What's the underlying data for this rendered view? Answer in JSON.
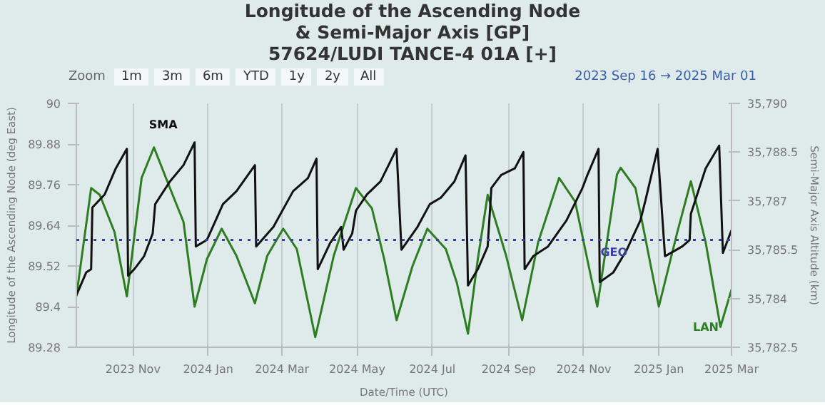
{
  "chart_data": {
    "type": "line",
    "title": "Longitude of the Ascending Node\n& Semi-Major Axis [GP]\n57624/LUDI TANCE-4 01A [+]",
    "xlabel": "Date/Time (UTC)",
    "ylabel": "Longitude of the Ascending Node (deg East)",
    "y2label": "Semi-Major Axis Altitude (km)",
    "annotations": [
      "Zoom",
      "1m",
      "3m",
      "6m",
      "YTD",
      "1y",
      "2y",
      "All",
      "2023 Sep 16 → 2025 Mar 01"
    ],
    "xlim": [
      "2023-09-16",
      "2025-03-01"
    ],
    "xticks": [
      {
        "value": "2023-11-01",
        "label": "2023 Nov"
      },
      {
        "value": "2024-01-01",
        "label": "2024 Jan"
      },
      {
        "value": "2024-03-01",
        "label": "2024 Mar"
      },
      {
        "value": "2024-05-01",
        "label": "2024 May"
      },
      {
        "value": "2024-07-01",
        "label": "2024 Jul"
      },
      {
        "value": "2024-09-01",
        "label": "2024 Sep"
      },
      {
        "value": "2024-11-01",
        "label": "2024 Nov"
      },
      {
        "value": "2025-01-01",
        "label": "2025 Jan"
      },
      {
        "value": "2025-03-01",
        "label": "2025 Mar"
      }
    ],
    "ylim": [
      89.28,
      90
    ],
    "yticks": [
      89.28,
      89.4,
      89.52,
      89.64,
      89.76,
      89.88,
      90
    ],
    "y2lim": [
      35782.5,
      35790
    ],
    "y2ticks": [
      {
        "value": 35782.5,
        "label": "35,782.5"
      },
      {
        "value": 35784,
        "label": "35,784"
      },
      {
        "value": 35785.5,
        "label": "35,785.5"
      },
      {
        "value": 35787,
        "label": "35,787"
      },
      {
        "value": 35788.5,
        "label": "35,788.5"
      },
      {
        "value": 35790,
        "label": "35,790"
      }
    ],
    "grid": "x",
    "marker": "none",
    "line_style": "solid",
    "ref_lines": [
      {
        "axis": "y2",
        "value": 35785.8,
        "label": "GEO",
        "color": "#3b3fa8",
        "line_style": "dotted"
      }
    ],
    "series": [
      {
        "name": "LAN",
        "color": "#2f7d22",
        "x": [
          "2023-09-16",
          "2023-09-28",
          "2023-10-05",
          "2023-10-17",
          "2023-10-27",
          "2023-11-08",
          "2023-11-18",
          "2023-12-01",
          "2023-12-12",
          "2023-12-21",
          "2023-12-31",
          "2024-01-12",
          "2024-01-24",
          "2024-02-08",
          "2024-02-18",
          "2024-03-02",
          "2024-03-13",
          "2024-03-28",
          "2024-04-12",
          "2024-04-30",
          "2024-05-13",
          "2024-05-23",
          "2024-06-02",
          "2024-06-15",
          "2024-06-27",
          "2024-07-12",
          "2024-07-21",
          "2024-07-30",
          "2024-08-07",
          "2024-08-15",
          "2024-08-30",
          "2024-09-12",
          "2024-09-25",
          "2024-10-12",
          "2024-10-25",
          "2024-11-12",
          "2024-11-28",
          "2024-12-01",
          "2024-12-13",
          "2025-01-01",
          "2025-01-16",
          "2025-01-27",
          "2025-02-08",
          "2025-02-20",
          "2025-03-01"
        ],
        "values": [
          89.43,
          89.75,
          89.73,
          89.62,
          89.43,
          89.78,
          89.87,
          89.75,
          89.65,
          89.4,
          89.54,
          89.63,
          89.55,
          89.41,
          89.55,
          89.63,
          89.57,
          89.31,
          89.55,
          89.75,
          89.69,
          89.54,
          89.36,
          89.52,
          89.63,
          89.57,
          89.47,
          89.32,
          89.54,
          89.73,
          89.55,
          89.36,
          89.59,
          89.78,
          89.71,
          89.4,
          89.79,
          89.81,
          89.75,
          89.4,
          89.62,
          89.77,
          89.59,
          89.34,
          89.45
        ]
      },
      {
        "name": "SMA",
        "color": "#111111",
        "axis": "y2",
        "x": [
          "2023-09-16",
          "2023-09-24",
          "2023-09-28",
          "2023-09-29",
          "2023-10-09",
          "2023-10-18",
          "2023-10-27",
          "2023-10-28",
          "2023-11-02",
          "2023-11-10",
          "2023-11-17",
          "2023-11-19",
          "2023-12-01",
          "2023-12-12",
          "2023-12-21",
          "2023-12-22",
          "2023-12-31",
          "2024-01-13",
          "2024-01-24",
          "2024-02-08",
          "2024-02-09",
          "2024-02-23",
          "2024-03-10",
          "2024-03-22",
          "2024-03-29",
          "2024-03-30",
          "2024-04-09",
          "2024-04-18",
          "2024-04-20",
          "2024-04-27",
          "2024-04-30",
          "2024-05-09",
          "2024-05-20",
          "2024-06-02",
          "2024-06-06",
          "2024-06-19",
          "2024-06-29",
          "2024-07-08",
          "2024-07-19",
          "2024-07-28",
          "2024-07-30",
          "2024-08-07",
          "2024-08-15",
          "2024-08-18",
          "2024-08-26",
          "2024-09-06",
          "2024-09-13",
          "2024-09-14",
          "2024-09-21",
          "2024-10-03",
          "2024-10-18",
          "2024-10-31",
          "2024-11-04",
          "2024-11-13",
          "2024-11-14",
          "2024-11-25",
          "2024-12-06",
          "2024-12-17",
          "2024-12-21",
          "2024-12-31",
          "2025-01-06",
          "2025-01-20",
          "2025-01-26",
          "2025-01-27",
          "2025-02-08",
          "2025-02-19",
          "2025-02-22",
          "2025-03-01"
        ],
        "values": [
          35784.1,
          35784.8,
          35784.9,
          35786.8,
          35787.2,
          35788.0,
          35788.6,
          35784.7,
          35784.9,
          35785.3,
          35786.0,
          35786.9,
          35787.6,
          35788.1,
          35788.8,
          35785.6,
          35785.8,
          35786.9,
          35787.3,
          35788.1,
          35785.6,
          35786.2,
          35787.3,
          35787.7,
          35788.3,
          35784.9,
          35785.7,
          35786.2,
          35785.5,
          35786.0,
          35786.7,
          35787.2,
          35787.6,
          35788.6,
          35785.5,
          35786.2,
          35786.9,
          35787.1,
          35787.6,
          35788.4,
          35784.4,
          35784.9,
          35785.6,
          35787.4,
          35787.8,
          35788.0,
          35788.5,
          35784.9,
          35785.3,
          35785.6,
          35786.4,
          35787.4,
          35787.8,
          35788.6,
          35784.5,
          35784.8,
          35785.5,
          35786.4,
          35787.0,
          35788.6,
          35785.3,
          35785.6,
          35785.8,
          35786.6,
          35788.0,
          35788.7,
          35785.4,
          35786.1
        ]
      }
    ]
  }
}
